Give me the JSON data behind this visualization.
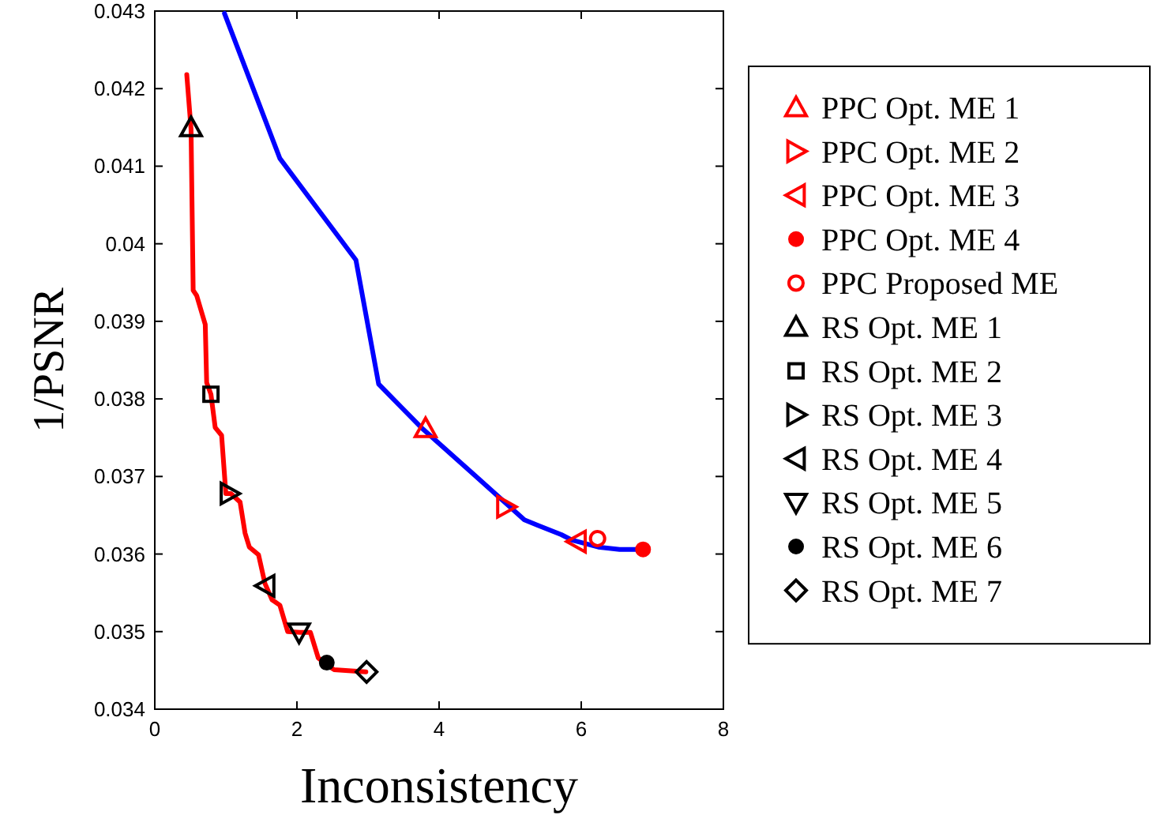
{
  "chart_data": {
    "type": "line",
    "xlabel": "Inconsistency",
    "ylabel": "1/PSNR",
    "xlim": [
      0,
      8
    ],
    "ylim": [
      0.034,
      0.043
    ],
    "xticks": [
      0,
      2,
      4,
      6,
      8
    ],
    "yticks": [
      0.034,
      0.035,
      0.036,
      0.037,
      0.038,
      0.039,
      0.04,
      0.041,
      0.042,
      0.043
    ],
    "grid": false,
    "legend": "right",
    "line_style": "solid",
    "series": [
      {
        "color": "#0000ff",
        "marker": "none",
        "x": [
          0.98,
          1.76,
          2.83,
          3.15,
          3.75,
          4.46,
          5.2,
          5.39,
          5.72,
          5.87,
          6.24,
          6.54,
          6.87
        ],
        "values": [
          0.04297,
          0.0411,
          0.03979,
          0.03819,
          0.03763,
          0.03705,
          0.03644,
          0.03637,
          0.03625,
          0.03618,
          0.03609,
          0.03606,
          0.03606
        ]
      },
      {
        "color": "#ff0000",
        "marker": "none",
        "x": [
          0.45,
          0.51,
          0.54,
          0.59,
          0.71,
          0.73,
          0.79,
          0.85,
          0.94,
          1.0,
          1.07,
          1.2,
          1.27,
          1.33,
          1.46,
          1.55,
          1.65,
          1.76,
          1.87,
          2.04,
          2.19,
          2.3,
          2.41,
          2.52,
          2.97
        ],
        "values": [
          0.04218,
          0.04148,
          0.0394,
          0.03933,
          0.03896,
          0.03821,
          0.03806,
          0.03763,
          0.03753,
          0.03678,
          0.03678,
          0.03667,
          0.03627,
          0.03609,
          0.03599,
          0.03562,
          0.03541,
          0.03534,
          0.035,
          0.03499,
          0.03499,
          0.03466,
          0.03458,
          0.03451,
          0.03448
        ]
      },
      {
        "type": "scatter",
        "name": "PPC Opt. ME 1",
        "color": "#ff0000",
        "marker": "triangle",
        "x": [
          3.81
        ],
        "values": [
          0.03762
        ]
      },
      {
        "type": "scatter",
        "name": "PPC Opt. ME 2",
        "color": "#ff0000",
        "marker": "triangle-right",
        "x": [
          4.94
        ],
        "values": [
          0.03661
        ]
      },
      {
        "type": "scatter",
        "name": "PPC Opt. ME 3",
        "color": "#ff0000",
        "marker": "triangle-left",
        "x": [
          5.94
        ],
        "values": [
          0.03616
        ]
      },
      {
        "type": "scatter",
        "name": "PPC Opt. ME 4",
        "color": "#ff0000",
        "marker": "circle",
        "x": [
          6.87
        ],
        "values": [
          0.03606
        ]
      },
      {
        "type": "scatter",
        "name": "PPC Proposed ME",
        "color": "#ff0000",
        "marker": "circle-open",
        "x": [
          6.23
        ],
        "values": [
          0.0362
        ]
      },
      {
        "type": "scatter",
        "name": "RS Opt. ME 1",
        "color": "#000000",
        "marker": "triangle",
        "x": [
          0.51
        ],
        "values": [
          0.0415
        ]
      },
      {
        "type": "scatter",
        "name": "RS Opt. ME 2",
        "color": "#000000",
        "marker": "square",
        "x": [
          0.79
        ],
        "values": [
          0.03806
        ]
      },
      {
        "type": "scatter",
        "name": "RS Opt. ME 3",
        "color": "#000000",
        "marker": "triangle-right",
        "x": [
          1.05
        ],
        "values": [
          0.03678
        ]
      },
      {
        "type": "scatter",
        "name": "RS Opt. ME 4",
        "color": "#000000",
        "marker": "triangle-left",
        "x": [
          1.56
        ],
        "values": [
          0.03559
        ]
      },
      {
        "type": "scatter",
        "name": "RS Opt. ME 5",
        "color": "#000000",
        "marker": "triangle-down",
        "x": [
          2.03
        ],
        "values": [
          0.03499
        ]
      },
      {
        "type": "scatter",
        "name": "RS Opt. ME 6",
        "color": "#000000",
        "marker": "circle",
        "x": [
          2.42
        ],
        "values": [
          0.0346
        ]
      },
      {
        "type": "scatter",
        "name": "RS Opt. ME 7",
        "color": "#000000",
        "marker": "diamond",
        "x": [
          2.98
        ],
        "values": [
          0.03448
        ]
      }
    ]
  }
}
